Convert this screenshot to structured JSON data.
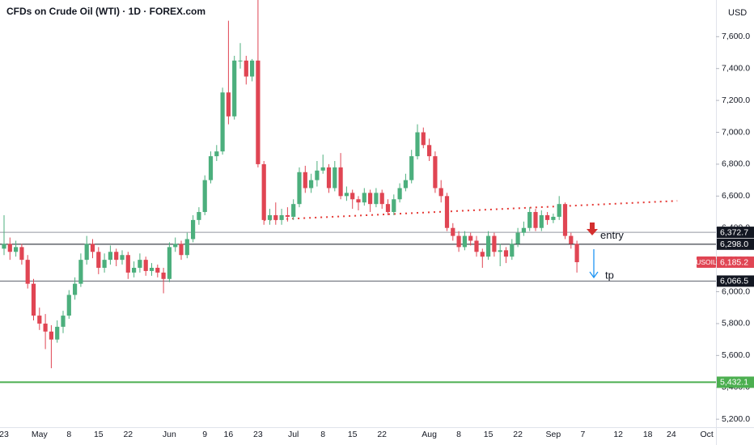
{
  "chart_data": {
    "type": "candlestick",
    "title": "CFDs on Crude Oil (WTI) · 1D · FOREX.com",
    "currency": "USD",
    "categories": [
      "23",
      null,
      null,
      null,
      null,
      null,
      "May",
      null,
      null,
      null,
      null,
      "8",
      null,
      null,
      null,
      null,
      "15",
      null,
      null,
      null,
      null,
      "22",
      null,
      null,
      null,
      null,
      null,
      null,
      "Jun",
      null,
      null,
      null,
      null,
      null,
      "9",
      null,
      null,
      null,
      "16",
      null,
      null,
      null,
      null,
      "23",
      null,
      null,
      null,
      null,
      null,
      "Jul",
      null,
      null,
      null,
      null,
      "8",
      null,
      null,
      null,
      null,
      "15",
      null,
      null,
      null,
      null,
      "22",
      null,
      null,
      null,
      null,
      null,
      null,
      null,
      "Aug",
      null,
      null,
      null,
      null,
      "8",
      null,
      null,
      null,
      null,
      "15",
      null,
      null,
      null,
      null,
      "22",
      null,
      null,
      null,
      null,
      null,
      "Sep",
      null,
      null,
      null,
      null,
      "7",
      null,
      null,
      null,
      null,
      null,
      "12",
      null,
      null,
      null,
      null,
      "18",
      null,
      null,
      null,
      "24",
      null,
      null,
      null,
      null,
      null,
      "Oct"
    ],
    "open": [
      6270,
      6300,
      6250,
      6280,
      6200,
      6050,
      5850,
      5800,
      5750,
      5700,
      5780,
      5850,
      5980,
      6050,
      6200,
      6300,
      6250,
      6150,
      6200,
      6250,
      6200,
      6230,
      6120,
      6150,
      6200,
      6130,
      6150,
      6120,
      6080,
      6280,
      6300,
      6230,
      6330,
      6450,
      6500,
      6700,
      6850,
      6880,
      7250,
      7100,
      7450,
      7450,
      7350,
      7450,
      6800,
      6450,
      6480,
      6450,
      6480,
      6470,
      6550,
      6750,
      6650,
      6700,
      6760,
      6780,
      6650,
      6780,
      6600,
      6620,
      6580,
      6560,
      6620,
      6550,
      6620,
      6550,
      6500,
      6580,
      6650,
      6700,
      6850,
      7000,
      6920,
      6850,
      6650,
      6600,
      6400,
      6350,
      6280,
      6350,
      6320,
      6250,
      6220,
      6350,
      6250,
      6260,
      6220,
      6300,
      6370,
      6400,
      6500,
      6400,
      6480,
      6450,
      6470,
      6550,
      6350,
      6300,
      null,
      null,
      null,
      null,
      null,
      null,
      null,
      null,
      null,
      null,
      null,
      null,
      null,
      null,
      null,
      null,
      null,
      null,
      null,
      null,
      null,
      null
    ],
    "high": [
      6480,
      6340,
      6320,
      6300,
      6230,
      6080,
      5900,
      5860,
      5790,
      5820,
      5880,
      6010,
      6090,
      6240,
      6350,
      6330,
      6280,
      6240,
      6290,
      6270,
      6260,
      6250,
      6190,
      6240,
      6220,
      6180,
      6170,
      6150,
      6310,
      6340,
      6320,
      6370,
      6480,
      6530,
      6730,
      6880,
      6920,
      7280,
      7700,
      7480,
      7560,
      7480,
      7460,
      7830,
      6820,
      6520,
      6560,
      6520,
      6530,
      6580,
      6780,
      6790,
      6740,
      6820,
      6860,
      6800,
      6820,
      6870,
      6660,
      6640,
      6600,
      6650,
      6640,
      6650,
      6640,
      6580,
      6610,
      6680,
      6740,
      6890,
      7050,
      7030,
      6960,
      6880,
      6700,
      6620,
      6430,
      6380,
      6380,
      6370,
      6350,
      6270,
      6380,
      6370,
      6300,
      6280,
      6330,
      6400,
      6440,
      6530,
      6520,
      6510,
      6500,
      6490,
      6600,
      6560,
      6370,
      6320,
      null,
      null,
      null,
      null,
      null,
      null,
      null,
      null,
      null,
      null,
      null,
      null,
      null,
      null,
      null,
      null,
      null,
      null,
      null,
      null,
      null,
      null
    ],
    "low": [
      6230,
      6200,
      6220,
      6170,
      6020,
      5820,
      5760,
      5640,
      5520,
      5680,
      5740,
      5830,
      5950,
      6030,
      6170,
      6210,
      6110,
      6120,
      6170,
      6160,
      6170,
      6080,
      6090,
      6120,
      6100,
      6100,
      6090,
      5990,
      6060,
      6250,
      6200,
      6210,
      6310,
      6420,
      6480,
      6680,
      6820,
      6860,
      7050,
      7080,
      7400,
      7300,
      7320,
      6780,
      6420,
      6420,
      6420,
      6420,
      6440,
      6450,
      6530,
      6620,
      6620,
      6660,
      6740,
      6620,
      6630,
      6580,
      6570,
      6520,
      6510,
      6540,
      6500,
      6530,
      6520,
      6480,
      6480,
      6560,
      6630,
      6680,
      6830,
      6900,
      6820,
      6620,
      6560,
      6380,
      6320,
      6250,
      6260,
      6290,
      6220,
      6150,
      6200,
      6220,
      6160,
      6180,
      6200,
      6280,
      6350,
      6380,
      6380,
      6380,
      6420,
      6430,
      6450,
      6330,
      6270,
      6120,
      null,
      null,
      null,
      null,
      null,
      null,
      null,
      null,
      null,
      null,
      null,
      null,
      null,
      null,
      null,
      null,
      null,
      null,
      null,
      null,
      null,
      null
    ],
    "close": [
      6300,
      6250,
      6280,
      6200,
      6050,
      5850,
      5800,
      5750,
      5700,
      5780,
      5850,
      5980,
      6050,
      6200,
      6300,
      6250,
      6150,
      6200,
      6250,
      6200,
      6230,
      6120,
      6150,
      6200,
      6130,
      6150,
      6120,
      6080,
      6280,
      6300,
      6230,
      6330,
      6450,
      6500,
      6700,
      6850,
      6880,
      7250,
      7100,
      7450,
      7450,
      7350,
      7450,
      6800,
      6450,
      6480,
      6450,
      6480,
      6470,
      6550,
      6750,
      6650,
      6700,
      6760,
      6780,
      6650,
      6780,
      6600,
      6620,
      6580,
      6560,
      6620,
      6550,
      6620,
      6550,
      6500,
      6580,
      6650,
      6700,
      6850,
      7000,
      6920,
      6850,
      6650,
      6600,
      6400,
      6350,
      6280,
      6350,
      6320,
      6250,
      6220,
      6350,
      6250,
      6260,
      6220,
      6300,
      6370,
      6400,
      6500,
      6400,
      6480,
      6450,
      6470,
      6550,
      6350,
      6300,
      6185.2,
      null,
      null,
      null,
      null,
      null,
      null,
      null,
      null,
      null,
      null,
      null,
      null,
      null,
      null,
      null,
      null,
      null,
      null,
      null,
      null,
      null,
      null
    ],
    "up_color": "#4caf7d",
    "down_color": "#e04553",
    "ylim": [
      5150,
      7830
    ],
    "yticks": [
      {
        "value": 5200,
        "label": "5,200.0"
      },
      {
        "value": 5400,
        "label": "5,400.0"
      },
      {
        "value": 5600,
        "label": "5,600.0"
      },
      {
        "value": 5800,
        "label": "5,800.0"
      },
      {
        "value": 6000,
        "label": "6,000.0"
      },
      {
        "value": 6200,
        "label": "6,200.0"
      },
      {
        "value": 6400,
        "label": "6,400.0"
      },
      {
        "value": 6600,
        "label": "6,600.0"
      },
      {
        "value": 6800,
        "label": "6,800.0"
      },
      {
        "value": 7000,
        "label": "7,000.0"
      },
      {
        "value": 7200,
        "label": "7,200.0"
      },
      {
        "value": 7400,
        "label": "7,400.0"
      },
      {
        "value": 7600,
        "label": "7,600.0"
      }
    ],
    "grid": false,
    "levels": [
      {
        "value": 6372.7,
        "label": "6,372.7",
        "color": "#9598a1"
      },
      {
        "value": 6298.0,
        "label": "6,298.0",
        "color": "#131722"
      },
      {
        "value": 6066.5,
        "label": "6,066.5",
        "color": "#5d606b"
      },
      {
        "value": 5432.1,
        "label": "5,432.1",
        "color": "#4caf50"
      }
    ],
    "last_price": {
      "symbol": "USOIL",
      "value": 6185.2,
      "label": "6,185.2",
      "color": "#e04553"
    },
    "trendline": {
      "values": [
        6450,
        6570
      ],
      "color": "#e53935"
    },
    "annotations": [
      {
        "text": "entry",
        "value": 6350
      },
      {
        "text": "tp",
        "value": 6100
      }
    ]
  }
}
